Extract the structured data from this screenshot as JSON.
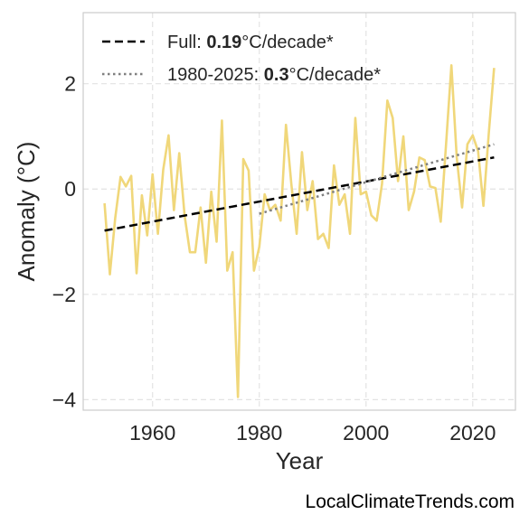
{
  "chart_data": {
    "type": "line",
    "xlabel": "Year",
    "ylabel": "Anomaly (°C)",
    "xlim": [
      1947,
      2028
    ],
    "ylim": [
      -4.2,
      3.35
    ],
    "xticks": [
      1960,
      1980,
      2000,
      2020
    ],
    "yticks": [
      -4,
      -2,
      0,
      2
    ],
    "ytick_labels": [
      "−4",
      "−2",
      "0",
      "2"
    ],
    "grid": true,
    "legend_position": "top-left",
    "series": [
      {
        "style": "line",
        "color": "#f0d77a",
        "x": [
          1951,
          1952,
          1953,
          1954,
          1955,
          1956,
          1957,
          1958,
          1959,
          1960,
          1961,
          1962,
          1963,
          1964,
          1965,
          1966,
          1967,
          1968,
          1969,
          1970,
          1971,
          1972,
          1973,
          1974,
          1975,
          1976,
          1977,
          1978,
          1979,
          1980,
          1981,
          1982,
          1983,
          1984,
          1985,
          1986,
          1987,
          1988,
          1989,
          1990,
          1991,
          1992,
          1993,
          1994,
          1995,
          1996,
          1997,
          1998,
          1999,
          2000,
          2001,
          2002,
          2003,
          2004,
          2005,
          2006,
          2007,
          2008,
          2009,
          2010,
          2011,
          2012,
          2013,
          2014,
          2015,
          2016,
          2017,
          2018,
          2019,
          2020,
          2021,
          2022,
          2023,
          2024
        ],
        "values": [
          -0.27,
          -1.62,
          -0.55,
          0.23,
          0.05,
          0.25,
          -1.6,
          -0.12,
          -0.88,
          0.28,
          -0.85,
          0.37,
          1.02,
          -0.4,
          0.68,
          -0.5,
          -1.2,
          -1.2,
          -0.35,
          -1.4,
          -0.05,
          -1.0,
          1.3,
          -1.55,
          -1.2,
          -3.95,
          0.57,
          0.35,
          -1.55,
          -1.1,
          -0.1,
          -0.4,
          -0.3,
          -0.6,
          1.22,
          0.1,
          -0.85,
          0.7,
          -0.4,
          0.15,
          -0.95,
          -0.85,
          -1.12,
          0.45,
          -0.3,
          -0.1,
          -0.85,
          1.35,
          -0.1,
          -0.05,
          -0.5,
          -0.6,
          0.1,
          1.68,
          1.35,
          0.15,
          1.0,
          -0.4,
          -0.05,
          0.6,
          0.55,
          0.05,
          0.02,
          -0.62,
          0.85,
          2.35,
          0.6,
          -0.35,
          0.85,
          1.02,
          0.72,
          -0.32,
          1.05,
          2.3
        ]
      },
      {
        "name": "Full: 0.19°C/decade*",
        "style": "dashed",
        "color": "#000000",
        "x": [
          1951,
          2024
        ],
        "values": [
          -0.79,
          0.6
        ]
      },
      {
        "name": "1980-2025: 0.3°C/decade*",
        "style": "dotted",
        "color": "#808080",
        "x": [
          1980,
          2024
        ],
        "values": [
          -0.47,
          0.85
        ]
      }
    ]
  },
  "legend": {
    "full": {
      "prefix": "Full: ",
      "value": "0.19",
      "suffix": "°C/decade*"
    },
    "recent": {
      "prefix": "1980-2025: ",
      "value": "0.3",
      "suffix": "°C/decade*"
    }
  },
  "credit": "LocalClimateTrends.com"
}
